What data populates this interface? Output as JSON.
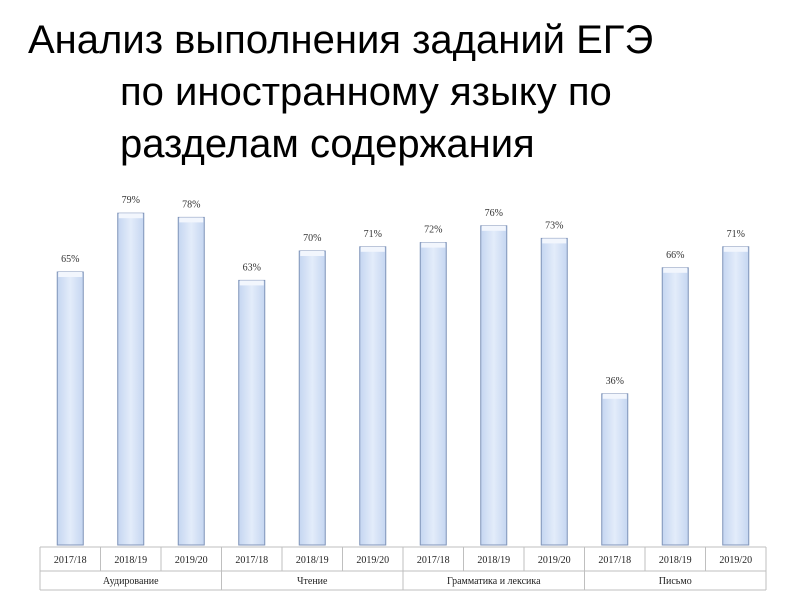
{
  "title": {
    "line1": "Анализ выполнения заданий ЕГЭ",
    "line2": "по иностранному языку по",
    "line3": "разделам содержания"
  },
  "colors": {
    "bar_fill_light": "#e3ecfa",
    "bar_fill_mid": "#c5d6f1",
    "bar_edge": "#7f93b8",
    "bar_top": "#f2f6fd",
    "axis_line": "#bfbfbf"
  },
  "chart_data": {
    "type": "bar",
    "groups": [
      {
        "name": "Аудирование",
        "years": [
          "2017/18",
          "2018/19",
          "2019/20"
        ],
        "values": [
          65,
          79,
          78
        ]
      },
      {
        "name": "Чтение",
        "years": [
          "2017/18",
          "2018/19",
          "2019/20"
        ],
        "values": [
          63,
          70,
          71
        ]
      },
      {
        "name": "Грамматика и лексика",
        "years": [
          "2017/18",
          "2018/19",
          "2019/20"
        ],
        "values": [
          72,
          76,
          73
        ]
      },
      {
        "name": "Письмо",
        "years": [
          "2017/18",
          "2018/19",
          "2019/20"
        ],
        "values": [
          36,
          66,
          71
        ]
      }
    ],
    "value_suffix": "%",
    "ylim": [
      0,
      100
    ],
    "grid": false,
    "legend": "none"
  }
}
